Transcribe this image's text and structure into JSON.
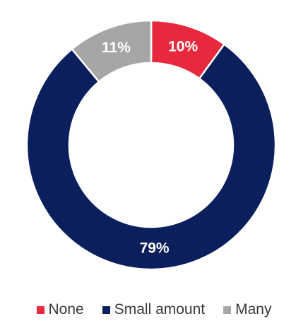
{
  "chart_data": {
    "type": "pie",
    "variant": "donut",
    "title": "",
    "legend_position": "bottom",
    "slices": [
      {
        "name": "None",
        "value": 10,
        "label": "10%",
        "color": "#e8283c"
      },
      {
        "name": "Small amount",
        "value": 79,
        "label": "79%",
        "color": "#0a1f5c"
      },
      {
        "name": "Many",
        "value": 11,
        "label": "11%",
        "color": "#a6a6a6"
      }
    ]
  }
}
